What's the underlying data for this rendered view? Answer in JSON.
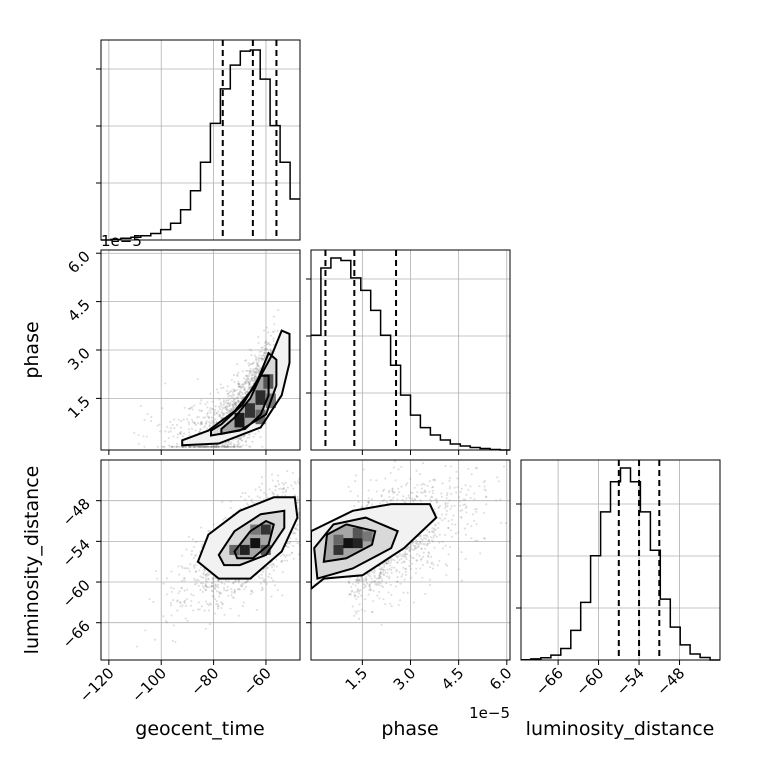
{
  "chart_data": {
    "type": "corner",
    "parameters": [
      "geocent_time",
      "phase",
      "luminosity_distance"
    ],
    "axis_labels": {
      "geocent_time": "geocent_time",
      "phase": "phase",
      "luminosity_distance": "luminosity_distance"
    },
    "offset_labels": {
      "phase_x": "1e−5",
      "phase_y": "1e−5"
    },
    "ranges": {
      "geocent_time": [
        -123,
        -47
      ],
      "phase": [
        -0.1,
        6.1
      ],
      "luminosity_distance": [
        -71.5,
        -42
      ]
    },
    "ticks": {
      "geocent_time": [
        -120,
        -100,
        -80,
        -60
      ],
      "phase": [
        1.5,
        3.0,
        4.5,
        6.0
      ],
      "luminosity_distance": [
        -66,
        -60,
        -54,
        -48
      ]
    },
    "tick_labels": {
      "geocent_time": [
        "−120",
        "−100",
        "−80",
        "−60"
      ],
      "phase": [
        "1.5",
        "3.0",
        "4.5",
        "6.0"
      ],
      "luminosity_distance": [
        "−66",
        "−60",
        "−54",
        "−48"
      ]
    },
    "quantiles": {
      "geocent_time": [
        -76.5,
        -65,
        -56
      ],
      "phase": [
        0.35,
        1.25,
        2.55
      ],
      "luminosity_distance": [
        -57,
        -54,
        -51
      ]
    },
    "histograms": {
      "geocent_time": {
        "bin_start": -123,
        "bin_width": 3.8,
        "counts": [
          0,
          3,
          8,
          13,
          20,
          30,
          48,
          78,
          140,
          228,
          360,
          540,
          700,
          810,
          875,
          880,
          745,
          530,
          360,
          190
        ]
      },
      "phase": {
        "bin_start": -0.1,
        "bin_width": 0.31,
        "counts": [
          230,
          365,
          385,
          380,
          345,
          320,
          280,
          230,
          170,
          110,
          70,
          45,
          30,
          20,
          12,
          8,
          5,
          3,
          1,
          0
        ]
      },
      "luminosity_distance": {
        "bin_start": -71.5,
        "bin_width": 1.475,
        "counts": [
          1,
          4,
          8,
          18,
          42,
          108,
          210,
          380,
          540,
          650,
          700,
          650,
          540,
          400,
          222,
          120,
          55,
          22,
          9,
          0
        ]
      }
    },
    "correlations": {
      "geocent_time_phase": "positive, curved",
      "geocent_time_luminosity_distance": "positive",
      "phase_luminosity_distance": "positive"
    },
    "grid": true
  }
}
